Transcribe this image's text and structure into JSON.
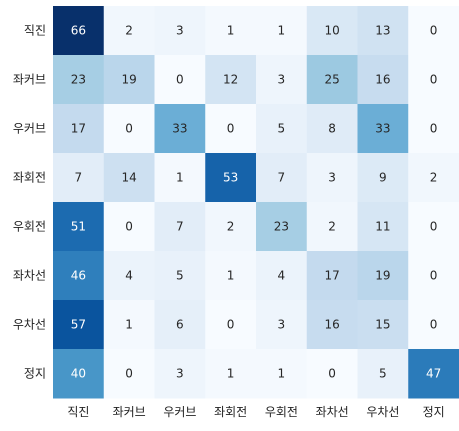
{
  "chart_data": {
    "type": "heatmap",
    "title": "",
    "xlabel": "",
    "ylabel": "",
    "row_labels": [
      "직진",
      "좌커브",
      "우커브",
      "좌회전",
      "우회전",
      "좌차선",
      "우차선",
      "정지"
    ],
    "col_labels": [
      "직진",
      "좌커브",
      "우커브",
      "좌회전",
      "우회전",
      "좌차선",
      "우차선",
      "정지"
    ],
    "values": [
      [
        66,
        2,
        3,
        1,
        1,
        10,
        13,
        0
      ],
      [
        23,
        19,
        0,
        12,
        3,
        25,
        16,
        0
      ],
      [
        17,
        0,
        33,
        0,
        5,
        8,
        33,
        0
      ],
      [
        7,
        14,
        1,
        53,
        7,
        3,
        9,
        2
      ],
      [
        51,
        0,
        7,
        2,
        23,
        2,
        11,
        0
      ],
      [
        46,
        4,
        5,
        1,
        4,
        17,
        19,
        0
      ],
      [
        57,
        1,
        6,
        0,
        3,
        16,
        15,
        0
      ],
      [
        40,
        0,
        3,
        1,
        1,
        0,
        5,
        47
      ]
    ],
    "colormap": "Blues",
    "value_range": [
      0,
      66
    ],
    "grid": false,
    "colorbar": false
  }
}
